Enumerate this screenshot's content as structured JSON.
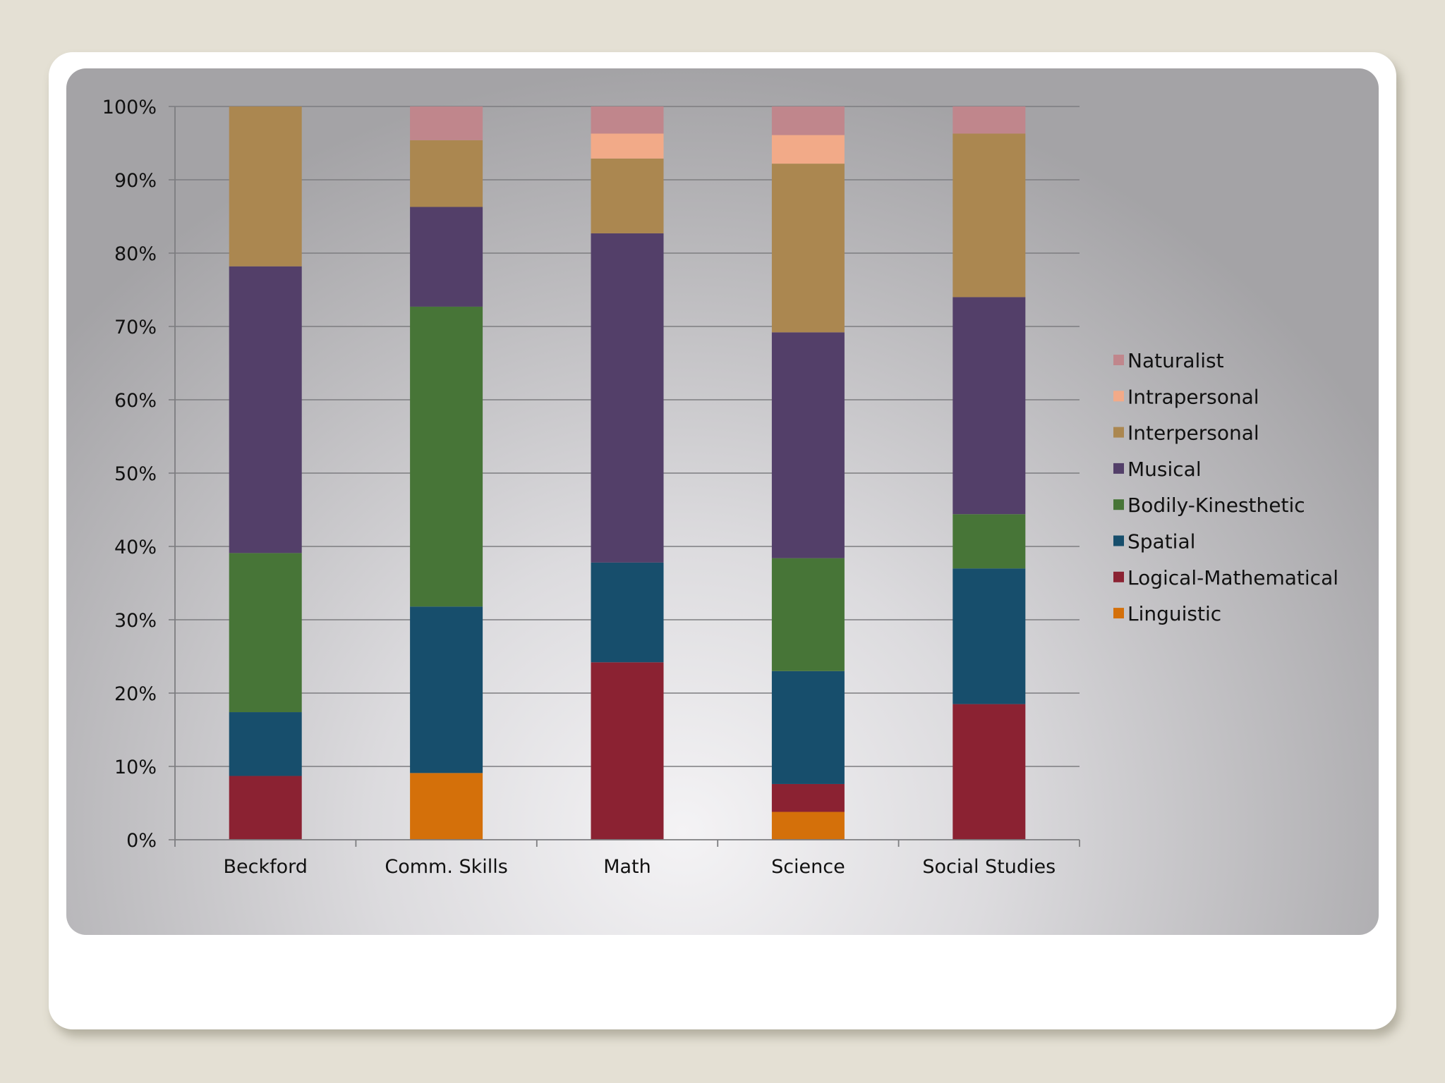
{
  "chart_data": {
    "type": "bar",
    "stacked": "percent",
    "categories": [
      "Beckford",
      "Comm. Skills",
      "Math",
      "Science",
      "Social Studies"
    ],
    "y_ticks": [
      "0%",
      "10%",
      "20%",
      "30%",
      "40%",
      "50%",
      "60%",
      "70%",
      "80%",
      "90%",
      "100%"
    ],
    "ylim": [
      0,
      100
    ],
    "grid": true,
    "legend_position": "right",
    "series": [
      {
        "name": "Linguistic",
        "color": "#d4700a",
        "values": [
          0,
          9.1,
          0,
          3.8,
          0
        ]
      },
      {
        "name": "Logical-Mathematical",
        "color": "#8b2232",
        "values": [
          8.7,
          0,
          24.2,
          3.8,
          18.5
        ]
      },
      {
        "name": "Spatial",
        "color": "#174e6c",
        "values": [
          8.7,
          22.7,
          13.6,
          15.4,
          18.5
        ]
      },
      {
        "name": "Bodily-Kinesthetic",
        "color": "#477537",
        "values": [
          21.7,
          40.9,
          0,
          15.4,
          7.4
        ]
      },
      {
        "name": "Musical",
        "color": "#533f69",
        "values": [
          39.1,
          13.6,
          44.9,
          30.8,
          29.6
        ]
      },
      {
        "name": "Interpersonal",
        "color": "#ab8750",
        "values": [
          21.8,
          9.1,
          10.2,
          23.0,
          22.3
        ]
      },
      {
        "name": "Intrapersonal",
        "color": "#f2aa88",
        "values": [
          0,
          0,
          3.4,
          3.9,
          0
        ]
      },
      {
        "name": "Naturalist",
        "color": "#c0868c",
        "values": [
          0,
          4.6,
          3.7,
          3.9,
          3.7
        ]
      }
    ]
  }
}
